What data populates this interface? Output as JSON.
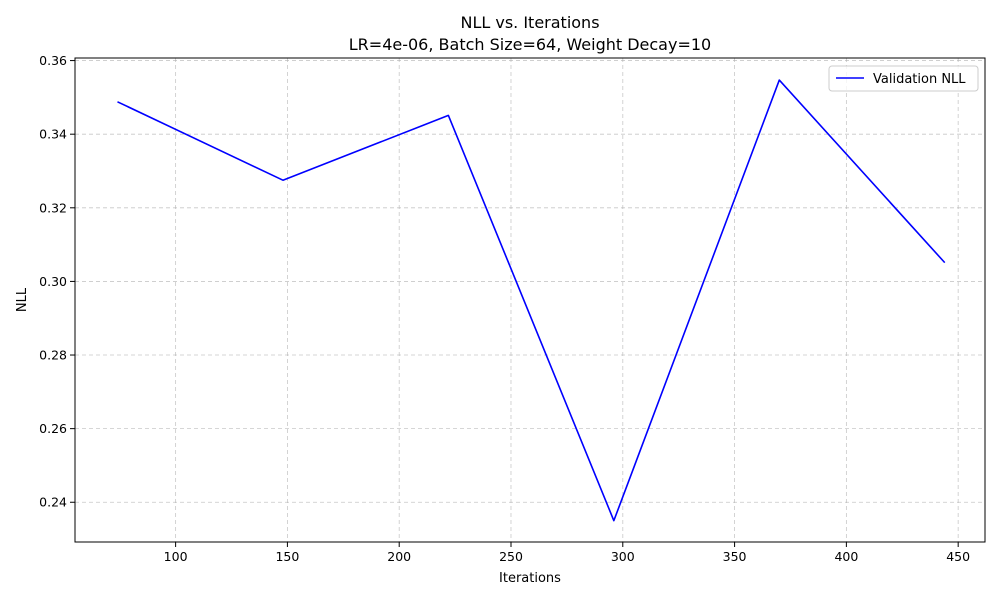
{
  "chart_data": {
    "type": "line",
    "title": "NLL vs. Iterations",
    "subtitle": "LR=4e-06, Batch Size=64, Weight Decay=10",
    "xlabel": "Iterations",
    "ylabel": "NLL",
    "xlim": [
      55,
      462
    ],
    "ylim": [
      0.2292,
      0.3607
    ],
    "xticks": [
      100,
      150,
      200,
      250,
      300,
      350,
      400,
      450
    ],
    "yticks": [
      0.24,
      0.26,
      0.28,
      0.3,
      0.32,
      0.34,
      0.36
    ],
    "xtick_labels": [
      "100",
      "150",
      "200",
      "250",
      "300",
      "350",
      "400",
      "450"
    ],
    "ytick_labels": [
      "0.24",
      "0.26",
      "0.28",
      "0.30",
      "0.32",
      "0.34",
      "0.36"
    ],
    "grid": true,
    "legend_position": "top-right",
    "series": [
      {
        "name": "Validation NLL",
        "color": "#0000ff",
        "x": [
          74,
          148,
          222,
          296,
          370,
          444
        ],
        "y": [
          0.3488,
          0.3275,
          0.3451,
          0.235,
          0.3547,
          0.3051
        ]
      }
    ]
  }
}
